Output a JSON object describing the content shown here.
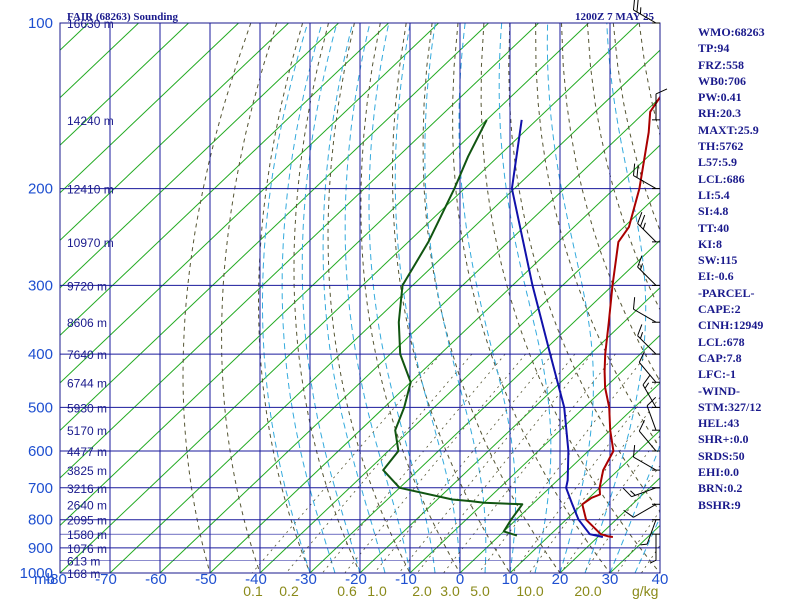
{
  "title_left": "FAIR (68263) Sounding",
  "title_right": "1200Z  7 MAY 25",
  "stats": [
    "WMO:68263",
    "TP:94",
    "FRZ:558",
    "WB0:706",
    "PW:0.41",
    "RH:20.3",
    "MAXT:25.9",
    "TH:5762",
    "L57:5.9",
    "LCL:686",
    "LI:5.4",
    "SI:4.8",
    "TT:40",
    "KI:8",
    "SW:115",
    "EI:-0.6",
    "-PARCEL-",
    "CAPE:2",
    "CINH:12949",
    "LCL:678",
    "CAP:7.8",
    "LFC:-1",
    "-WIND-",
    "STM:327/12",
    "HEL:43",
    "SHR+:0.0",
    "SRDS:50",
    "EHI:0.0",
    "BRN:0.2",
    "BSHR:9"
  ],
  "mixing_ratio_unit": "g/kg",
  "colors": {
    "frame": "#1a1a8c",
    "grid": "#1a1a9c",
    "isotherm": "#22aa22",
    "dry_adiabat": "#555533",
    "moist_adiabat": "#33aadd",
    "temperature": "#aa0000",
    "dewpoint": "#115511",
    "parcel": "#1111aa",
    "labels": "#1e4fd0",
    "mixing_labels": "#8a8a1a"
  },
  "chart_data": {
    "type": "line",
    "chart_kind": "skew-t log-p sounding",
    "x_unit": "C",
    "y_unit": "mb",
    "pressure_axis_label": "mb",
    "pressure_levels": [
      100,
      200,
      300,
      400,
      500,
      600,
      700,
      800,
      900,
      1000
    ],
    "pressure_tick_labels": [
      "100",
      "200",
      "300",
      "400",
      "500",
      "600",
      "700",
      "800",
      "900",
      "1000"
    ],
    "temperature_ticks": [
      -80,
      -70,
      -60,
      -50,
      -40,
      -30,
      -20,
      -10,
      0,
      10,
      20,
      30,
      40
    ],
    "temperature_tick_labels": [
      "-80",
      "-70",
      "-60",
      "-50",
      "-40",
      "-30",
      "-20",
      "-10",
      "0",
      "10",
      "20",
      "30",
      "40"
    ],
    "mixing_ratio_labels": [
      "0.1",
      "0.2",
      "0.6",
      "1.0",
      "2.0",
      "3.0",
      "5.0",
      "10.0",
      "20.0"
    ],
    "height_labels": [
      {
        "p": 100,
        "text": "16630 m"
      },
      {
        "p": 150,
        "text": "14240 m"
      },
      {
        "p": 200,
        "text": "12410 m"
      },
      {
        "p": 250,
        "text": "10970 m"
      },
      {
        "p": 300,
        "text": "9720 m"
      },
      {
        "p": 350,
        "text": "8606 m"
      },
      {
        "p": 400,
        "text": "7640 m"
      },
      {
        "p": 450,
        "text": "6744 m"
      },
      {
        "p": 500,
        "text": "5930 m"
      },
      {
        "p": 550,
        "text": "5170 m"
      },
      {
        "p": 600,
        "text": "4477 m"
      },
      {
        "p": 650,
        "text": "3825 m"
      },
      {
        "p": 700,
        "text": "3216 m"
      },
      {
        "p": 750,
        "text": "2640 m"
      },
      {
        "p": 800,
        "text": "2095 m"
      },
      {
        "p": 850,
        "text": "1580 m"
      },
      {
        "p": 900,
        "text": "1076 m"
      },
      {
        "p": 950,
        "text": "613 m"
      },
      {
        "p": 1000,
        "text": "168 m"
      }
    ],
    "series": [
      {
        "key": "temperature",
        "points": [
          [
            100,
            -72
          ],
          [
            130,
            -61
          ],
          [
            145,
            -59
          ],
          [
            158,
            -55
          ],
          [
            200,
            -45
          ],
          [
            235,
            -39
          ],
          [
            250,
            -38
          ],
          [
            300,
            -30
          ],
          [
            350,
            -23
          ],
          [
            400,
            -17
          ],
          [
            430,
            -13.5
          ],
          [
            460,
            -10
          ],
          [
            500,
            -5
          ],
          [
            550,
            0
          ],
          [
            600,
            5
          ],
          [
            650,
            7
          ],
          [
            700,
            10
          ],
          [
            720,
            11.5
          ],
          [
            730,
            10.5
          ],
          [
            750,
            10
          ],
          [
            800,
            14
          ],
          [
            850,
            20
          ],
          [
            858,
            22
          ],
          [
            860,
            23
          ]
        ]
      },
      {
        "key": "dewpoint",
        "points": [
          [
            150,
            -90
          ],
          [
            175,
            -86
          ],
          [
            200,
            -82
          ],
          [
            250,
            -76
          ],
          [
            300,
            -72
          ],
          [
            350,
            -65
          ],
          [
            400,
            -58
          ],
          [
            450,
            -50
          ],
          [
            500,
            -46
          ],
          [
            550,
            -43
          ],
          [
            600,
            -38
          ],
          [
            650,
            -37
          ],
          [
            700,
            -30
          ],
          [
            735,
            -17
          ],
          [
            740,
            -13
          ],
          [
            745,
            -10
          ],
          [
            750,
            -2
          ],
          [
            800,
            -1
          ],
          [
            840,
            0
          ],
          [
            855,
            3.5
          ]
        ]
      },
      {
        "key": "parcel",
        "points": [
          [
            150,
            -83
          ],
          [
            200,
            -70.5
          ],
          [
            300,
            -46
          ],
          [
            400,
            -28
          ],
          [
            500,
            -14
          ],
          [
            600,
            -4
          ],
          [
            678,
            2
          ],
          [
            700,
            3.3
          ],
          [
            750,
            8
          ],
          [
            800,
            12.5
          ],
          [
            850,
            17.8
          ],
          [
            860,
            21
          ]
        ]
      }
    ],
    "wind_barbs": [
      {
        "p": 100,
        "dir": 300,
        "kt": 25
      },
      {
        "p": 150,
        "dir": 360,
        "kt": 10
      },
      {
        "p": 200,
        "dir": 300,
        "kt": 20
      },
      {
        "p": 250,
        "dir": 315,
        "kt": 25
      },
      {
        "p": 300,
        "dir": 315,
        "kt": 15
      },
      {
        "p": 350,
        "dir": 300,
        "kt": 10
      },
      {
        "p": 400,
        "dir": 315,
        "kt": 15
      },
      {
        "p": 450,
        "dir": 320,
        "kt": 10
      },
      {
        "p": 500,
        "dir": 330,
        "kt": 15
      },
      {
        "p": 550,
        "dir": 340,
        "kt": 10
      },
      {
        "p": 600,
        "dir": 320,
        "kt": 10
      },
      {
        "p": 650,
        "dir": 300,
        "kt": 10
      },
      {
        "p": 700,
        "dir": 250,
        "kt": 15
      },
      {
        "p": 750,
        "dir": 240,
        "kt": 10
      },
      {
        "p": 800,
        "dir": 200,
        "kt": 5
      },
      {
        "p": 850,
        "dir": 180,
        "kt": 5
      }
    ]
  }
}
